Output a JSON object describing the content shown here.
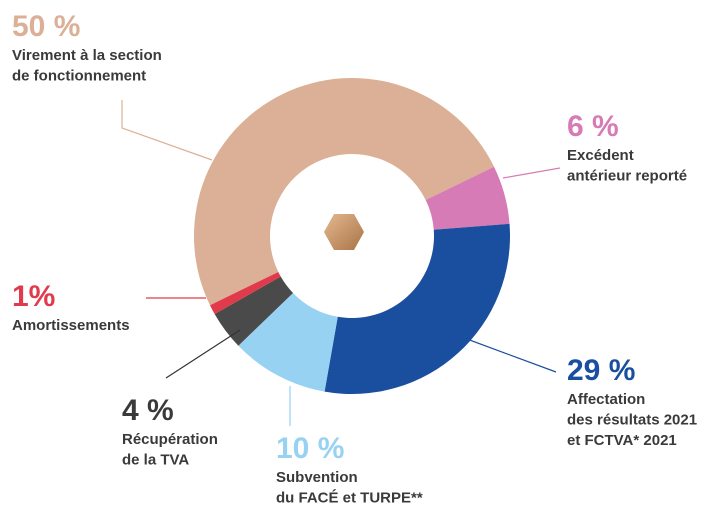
{
  "chart_data": {
    "type": "donut",
    "categories": [
      [
        "Virement à la section",
        "de fonctionnement"
      ],
      [
        "Excédent",
        "antérieur reporté"
      ],
      [
        "Affectation",
        "des résultats 2021",
        "et FCTVA* 2021"
      ],
      [
        "Subvention",
        "du FACÉ et TURPE**"
      ],
      [
        "Récupération",
        "de la TVA"
      ],
      [
        "Amortissements"
      ]
    ],
    "values": [
      50,
      6,
      29,
      10,
      4,
      1
    ],
    "value_labels": [
      "50 %",
      "6 %",
      "29 %",
      "10 %",
      "4 %",
      "1%"
    ],
    "colors": [
      "#dcb096",
      "#d67bb5",
      "#1a4e9e",
      "#97d2f3",
      "#4a4a4a",
      "#e03a4b"
    ]
  }
}
